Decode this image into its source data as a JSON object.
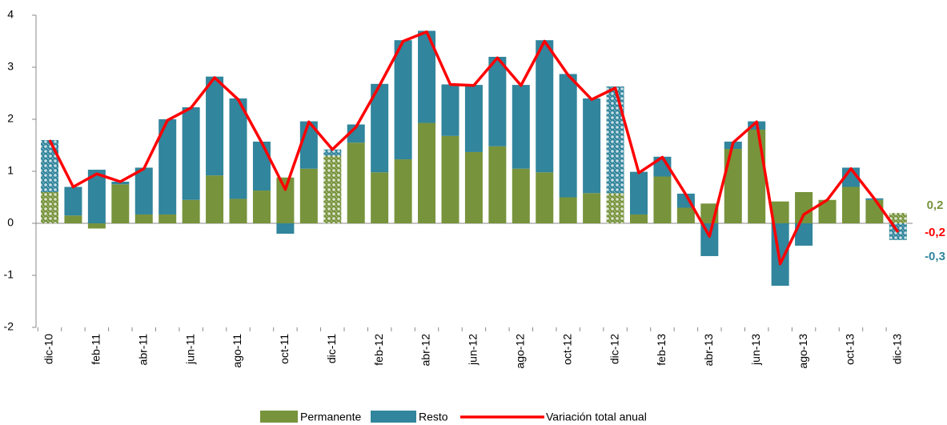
{
  "chart_data": {
    "type": "stacked_bar_line",
    "categories": [
      "dic-10",
      null,
      "feb-11",
      null,
      "abr-11",
      null,
      "jun-11",
      null,
      "ago-11",
      null,
      "oct-11",
      null,
      "dic-11",
      null,
      "feb-12",
      null,
      "abr-12",
      null,
      "jun-12",
      null,
      "ago-12",
      null,
      "oct-12",
      null,
      "dic-12",
      null,
      "feb-13",
      null,
      "abr-13",
      null,
      "jun-13",
      null,
      "ago-13",
      null,
      "oct-13",
      null,
      "dic-13"
    ],
    "series": [
      {
        "name": "Permanente",
        "color": "#77933c",
        "kind": "bar",
        "end_label": "0,2",
        "values": [
          0.6,
          0.15,
          -0.1,
          0.75,
          0.17,
          0.17,
          0.45,
          0.92,
          0.47,
          0.63,
          0.88,
          1.05,
          1.3,
          1.55,
          0.98,
          1.23,
          1.93,
          1.68,
          1.37,
          1.48,
          1.05,
          0.98,
          0.5,
          0.58,
          0.58,
          0.17,
          0.9,
          0.3,
          0.38,
          1.43,
          1.8,
          0.42,
          0.6,
          0.45,
          0.7,
          0.45,
          0.2
        ]
      },
      {
        "name": "Resto",
        "color": "#31859c",
        "kind": "bar",
        "end_label": "-0,3",
        "values": [
          1.0,
          0.55,
          1.03,
          0.05,
          0.9,
          1.83,
          1.78,
          1.9,
          1.93,
          0.94,
          -0.2,
          0.91,
          0.12,
          0.35,
          1.7,
          2.29,
          1.77,
          0.99,
          1.29,
          1.72,
          1.61,
          2.54,
          2.37,
          1.82,
          2.05,
          0.82,
          0.38,
          0.27,
          -0.63,
          0.14,
          0.16,
          -1.2,
          -0.43,
          0.0,
          0.37,
          0.03,
          -0.32
        ]
      },
      {
        "name": "Variación total anual",
        "color": "#ff0000",
        "kind": "line",
        "end_label": "-0,2",
        "values": [
          1.6,
          0.7,
          0.95,
          0.8,
          1.05,
          1.98,
          2.22,
          2.8,
          2.38,
          1.55,
          0.65,
          1.95,
          1.42,
          1.85,
          2.65,
          3.5,
          3.68,
          2.67,
          2.65,
          3.18,
          2.65,
          3.5,
          2.85,
          2.38,
          2.6,
          0.97,
          1.27,
          0.55,
          -0.25,
          1.55,
          1.95,
          -0.78,
          0.17,
          0.45,
          1.05,
          0.47,
          -0.17
        ]
      }
    ],
    "patterned_indices": [
      0,
      12,
      24,
      36
    ],
    "ylim": [
      -2,
      4
    ],
    "yticks": [
      -2,
      -1,
      0,
      1,
      2,
      3,
      4
    ],
    "legend": "bottom"
  }
}
